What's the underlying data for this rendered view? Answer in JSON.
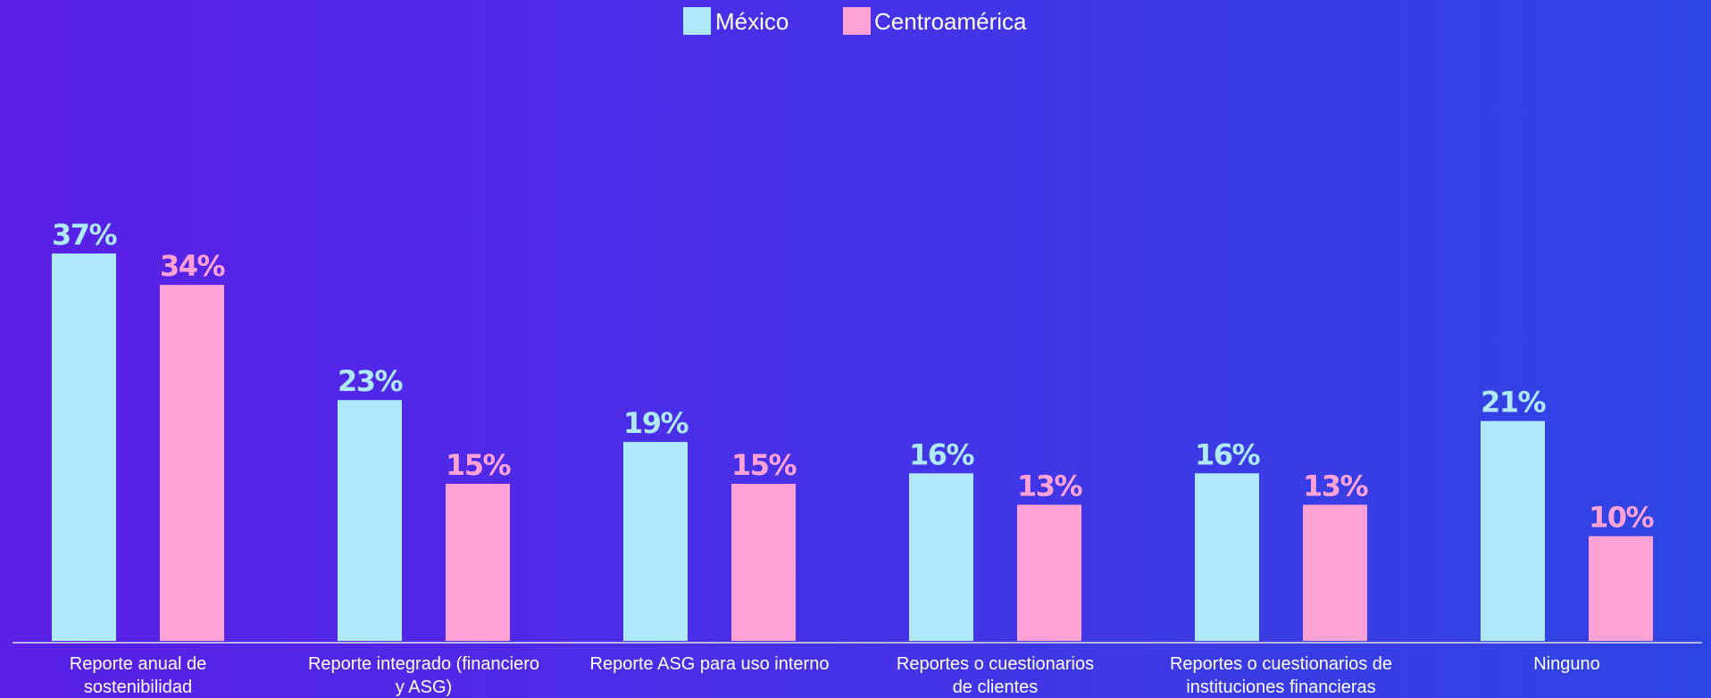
{
  "chart_data": {
    "type": "bar",
    "categories": [
      [
        "Reporte anual de",
        "sostenibilidad"
      ],
      [
        "Reporte integrado (financiero",
        "y ASG)"
      ],
      [
        "Reporte ASG para uso interno"
      ],
      [
        "Reportes o cuestionarios",
        "de clientes"
      ],
      [
        "Reportes o cuestionarios de",
        "instituciones financieras"
      ],
      [
        "Ninguno"
      ]
    ],
    "series": [
      {
        "name": "México",
        "color": "#aeeafb",
        "label_color": "#aeeafb",
        "values": [
          37,
          23,
          19,
          16,
          16,
          21
        ],
        "labels": [
          "37%",
          "23%",
          "19%",
          "16%",
          "16%",
          "21%"
        ]
      },
      {
        "name": "Centroamérica",
        "color": "#ffa2d6",
        "label_color": "#ffa2d6",
        "values": [
          34,
          15,
          15,
          13,
          13,
          10
        ],
        "labels": [
          "34%",
          "15%",
          "15%",
          "13%",
          "13%",
          "10%"
        ]
      }
    ],
    "ylim": [
      0,
      40
    ],
    "grid": false,
    "legend_position": "top-center"
  }
}
